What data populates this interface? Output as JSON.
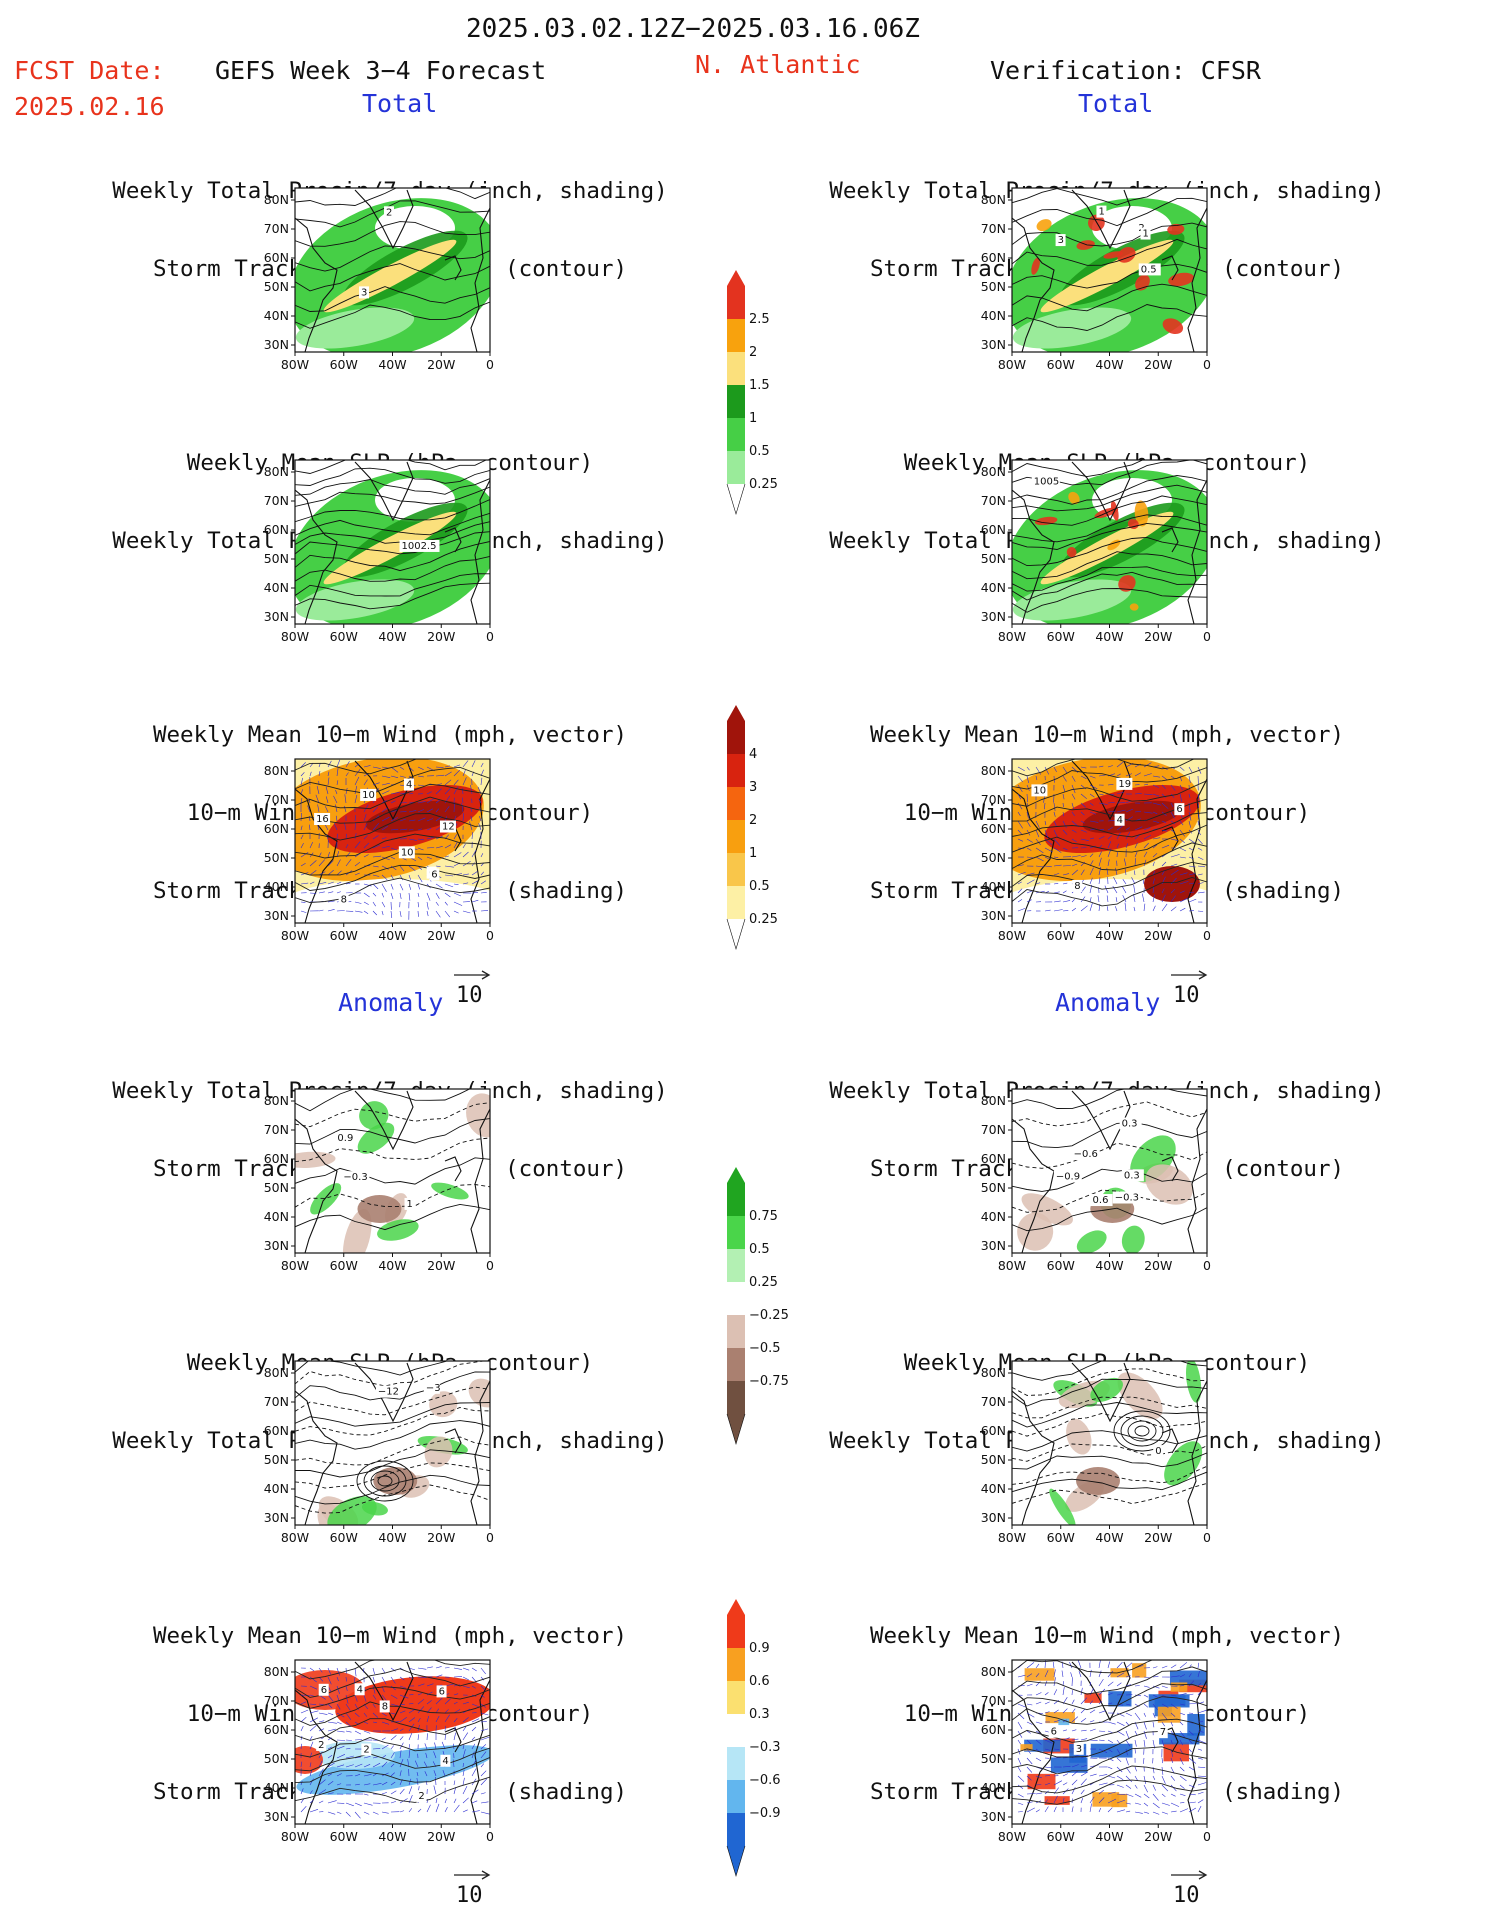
{
  "header": {
    "date_range": "2025.03.02.12Z−2025.03.16.06Z",
    "fcst_label": "FCST Date:",
    "fcst_date": "2025.02.16",
    "model": "GEFS Week 3−4 Forecast",
    "region": "N. Atlantic",
    "verification": "Verification: CFSR"
  },
  "sections": {
    "total": "Total",
    "anomaly": "Anomaly"
  },
  "titles": {
    "precip_storm": [
      "Weekly Total Precip/7−day (inch, shading)",
      "Storm Track Density/7−day (contour)"
    ],
    "slp_precip": [
      "Weekly Mean SLP (hPa, contour)",
      "Weekly Total Precip/7−day (inch, shading)"
    ],
    "wind_storm": [
      "Weekly Mean 10−m Wind (mph, vector)",
      "10−m Wind Speed (mph, contour)",
      "Storm Track Density/7−day (shading)"
    ]
  },
  "axes": {
    "lat": [
      "80N",
      "70N",
      "60N",
      "50N",
      "40N",
      "30N"
    ],
    "lon": [
      "80W",
      "60W",
      "40W",
      "20W",
      "0"
    ]
  },
  "vector_ref": "10",
  "colorbars": {
    "precip_total": {
      "labels": [
        "2.5",
        "2",
        "1.5",
        "1",
        "0.5",
        "0.25"
      ],
      "colors": [
        "#e3331f",
        "#f8a20d",
        "#fbe07c",
        "#1c9a1c",
        "#46cf46",
        "#9aeb9a"
      ]
    },
    "storm_total": {
      "labels": [
        "4",
        "3",
        "2",
        "1",
        "0.5",
        "0.25"
      ],
      "colors": [
        "#a0140b",
        "#d8230f",
        "#f5650f",
        "#f89f0f",
        "#f9c64a",
        "#fdf0a5"
      ]
    },
    "precip_anom": {
      "labels": [
        "0.75",
        "0.5",
        "0.25",
        "−0.25",
        "−0.5",
        "−0.75"
      ],
      "colors": [
        "#20a520",
        "#4ad54a",
        "#b3f0b3",
        "#ffffff",
        "#dcc0b3",
        "#aa8070",
        "#705040"
      ]
    },
    "storm_anom": {
      "labels": [
        "0.9",
        "0.6",
        "0.3",
        "−0.3",
        "−0.6",
        "−0.9"
      ],
      "colors": [
        "#ef3a1a",
        "#f8a020",
        "#fbe070",
        "#ffffff",
        "#b6e6f6",
        "#62b6ee",
        "#2066d2"
      ]
    }
  },
  "panel_labels": {
    "p1": [
      "3",
      "2"
    ],
    "p2": [
      "1002.5"
    ],
    "p3": [
      "12",
      "4",
      "16",
      "8",
      "10",
      "6",
      "6",
      "10"
    ],
    "p4": [
      "0.9",
      "−0.3",
      "1"
    ],
    "p5": [
      "−12",
      "−3"
    ],
    "p6": [
      "2",
      "2",
      "4",
      "4",
      "8",
      "6",
      "6",
      "2"
    ],
    "v1": [
      "2",
      "1",
      "1",
      "3",
      "0.5"
    ],
    "v2": [
      "1005"
    ],
    "v3": [
      "8",
      "19",
      "10",
      "4",
      "6"
    ],
    "v4": [
      "−0.3",
      "−0.9",
      "0.3",
      "−0.6",
      "0.3",
      "0.6"
    ],
    "v5": [
      "0"
    ],
    "v6": [
      "6",
      "3",
      "7"
    ]
  }
}
